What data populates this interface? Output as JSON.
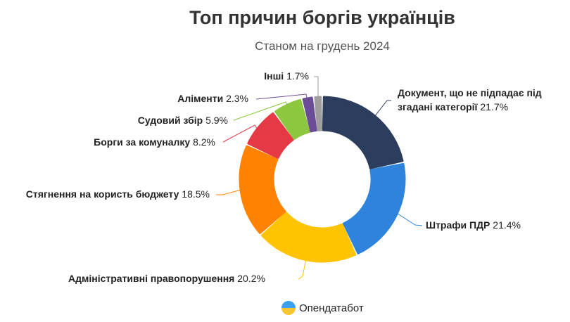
{
  "chart_data": {
    "type": "pie",
    "donut": true,
    "title": "Топ причин боргів українців",
    "subtitle": "Станом на грудень 2024",
    "slices": [
      {
        "name": "Документ, що не підпадає під згадані категорії",
        "name_line1": "Документ, що не підпадає під",
        "name_line2": "згадані категорії",
        "value": 21.7,
        "label": "21.7%",
        "color": "#2c3d5e"
      },
      {
        "name": "Штрафи ПДР",
        "value": 21.4,
        "label": "21.4%",
        "color": "#2e84dc"
      },
      {
        "name": "Адміністративні правопорушення",
        "value": 20.2,
        "label": "20.2%",
        "color": "#ffc300"
      },
      {
        "name": "Стягнення на користь бюджету",
        "value": 18.5,
        "label": "18.5%",
        "color": "#ff8300"
      },
      {
        "name": "Борги за комуналку",
        "value": 8.2,
        "label": "8.2%",
        "color": "#e63946"
      },
      {
        "name": "Судовий збір",
        "value": 5.9,
        "label": "5.9%",
        "color": "#8dc63f"
      },
      {
        "name": "Аліменти",
        "value": 2.3,
        "label": "2.3%",
        "color": "#6b4c96"
      },
      {
        "name": "Інші",
        "value": 1.7,
        "label": "1.7%",
        "color": "#9e9e9e"
      }
    ]
  },
  "branding": {
    "name": "Опендатабот"
  }
}
